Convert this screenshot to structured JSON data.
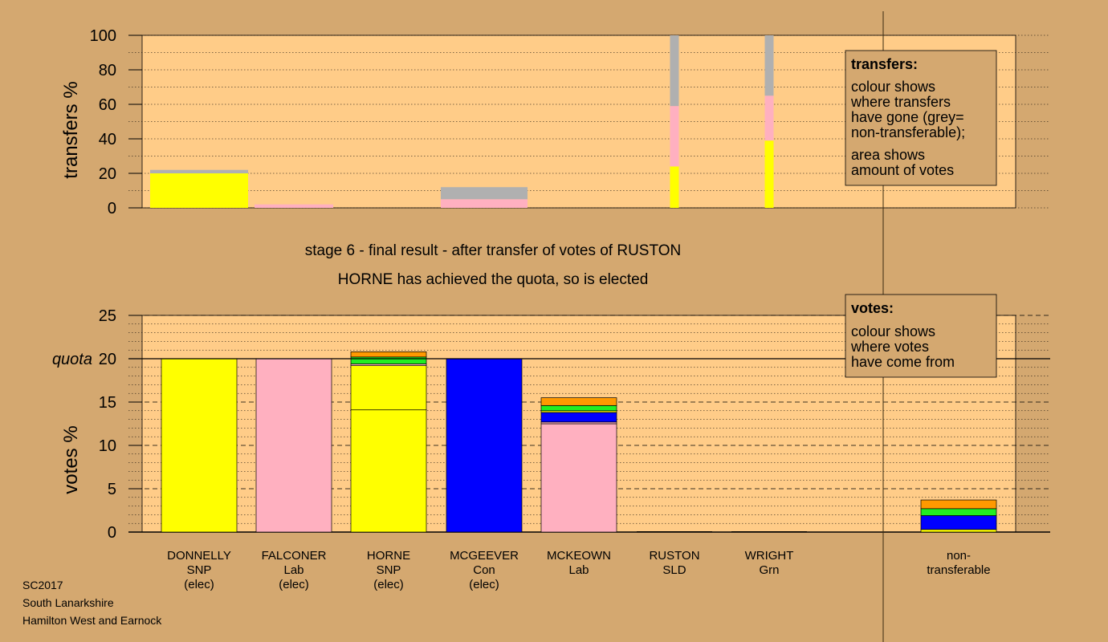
{
  "stage_title": "stage 6 - final result - after transfer of votes of RUSTON",
  "stage_subtitle": "HORNE has achieved the quota, so is elected",
  "footer": [
    "SC2017",
    "South Lanarkshire",
    "Hamilton West and Earnock"
  ],
  "colors": {
    "SNP": "#FFFF00",
    "Lab": "#FFB0C0",
    "Con": "#0000FF",
    "SLD": "#FF9900",
    "Grn": "#22EE22",
    "nontransferable": "#B0B0B0",
    "plot_bg": "#FFCC88",
    "page_bg": "#D4A870"
  },
  "legend_transfers": {
    "title": "transfers:",
    "lines": [
      "colour shows",
      "where transfers",
      "have gone (grey=",
      "non-transferable);",
      "area shows",
      "amount of votes"
    ]
  },
  "legend_votes": {
    "title": "votes:",
    "lines": [
      "colour shows",
      "where votes",
      "have come from"
    ]
  },
  "chart_data": [
    {
      "type": "bar",
      "name": "transfers",
      "ylabel": "transfers %",
      "ylim": [
        0,
        100
      ],
      "yticks": [
        0,
        20,
        40,
        60,
        80,
        100
      ],
      "bars": [
        {
          "candidate": "DONNELLY",
          "segments": [
            {
              "party": "SNP",
              "value": 20
            },
            {
              "party": "nontransferable",
              "value": 2
            }
          ]
        },
        {
          "candidate": "FALCONER",
          "segments": [
            {
              "party": "Lab",
              "value": 2
            }
          ]
        },
        {
          "candidate": "MCGEEVER",
          "segments": [
            {
              "party": "Lab",
              "value": 5
            },
            {
              "party": "nontransferable",
              "value": 7
            }
          ]
        },
        {
          "candidate": "RUSTON",
          "segments": [
            {
              "party": "SNP",
              "value": 24
            },
            {
              "party": "Lab",
              "value": 35
            },
            {
              "party": "nontransferable",
              "value": 41
            }
          ]
        },
        {
          "candidate": "WRIGHT",
          "segments": [
            {
              "party": "SNP",
              "value": 39
            },
            {
              "party": "Lab",
              "value": 26
            },
            {
              "party": "nontransferable",
              "value": 35
            }
          ]
        }
      ]
    },
    {
      "type": "bar",
      "name": "votes",
      "ylabel": "votes %",
      "ylim": [
        0,
        25
      ],
      "yticks": [
        0,
        5,
        10,
        15,
        20,
        25
      ],
      "quota": 20,
      "quota_label": "quota",
      "candidates": [
        {
          "name": "DONNELLY",
          "party": "SNP",
          "status": "(elec)",
          "segments": [
            {
              "party": "SNP",
              "value": 20
            }
          ]
        },
        {
          "name": "FALCONER",
          "party": "Lab",
          "status": "(elec)",
          "segments": [
            {
              "party": "Lab",
              "value": 20
            }
          ]
        },
        {
          "name": "HORNE",
          "party": "SNP",
          "status": "(elec)",
          "segments": [
            {
              "party": "SNP",
              "value": 14.1
            },
            {
              "party": "SNP",
              "value": 5.1
            },
            {
              "party": "Lab",
              "value": 0.2
            },
            {
              "party": "Grn",
              "value": 0.8
            },
            {
              "party": "SLD",
              "value": 0.6
            }
          ]
        },
        {
          "name": "MCGEEVER",
          "party": "Con",
          "status": "(elec)",
          "segments": [
            {
              "party": "Con",
              "value": 20
            }
          ]
        },
        {
          "name": "MCKEOWN",
          "party": "Lab",
          "status": "",
          "segments": [
            {
              "party": "Lab",
              "value": 12.5
            },
            {
              "party": "Lab",
              "value": 0.2
            },
            {
              "party": "Con",
              "value": 1.1
            },
            {
              "party": "SNP",
              "value": 0.2
            },
            {
              "party": "Grn",
              "value": 0.6
            },
            {
              "party": "SLD",
              "value": 0.9
            }
          ]
        },
        {
          "name": "RUSTON",
          "party": "SLD",
          "status": "",
          "segments": []
        },
        {
          "name": "WRIGHT",
          "party": "Grn",
          "status": "",
          "segments": []
        }
      ],
      "nontransferable": {
        "label_lines": [
          "non-",
          "transferable"
        ],
        "segments": [
          {
            "party": "SNP",
            "value": 0.3
          },
          {
            "party": "Con",
            "value": 1.6
          },
          {
            "party": "Grn",
            "value": 0.8
          },
          {
            "party": "SLD",
            "value": 1.0
          }
        ]
      }
    }
  ]
}
